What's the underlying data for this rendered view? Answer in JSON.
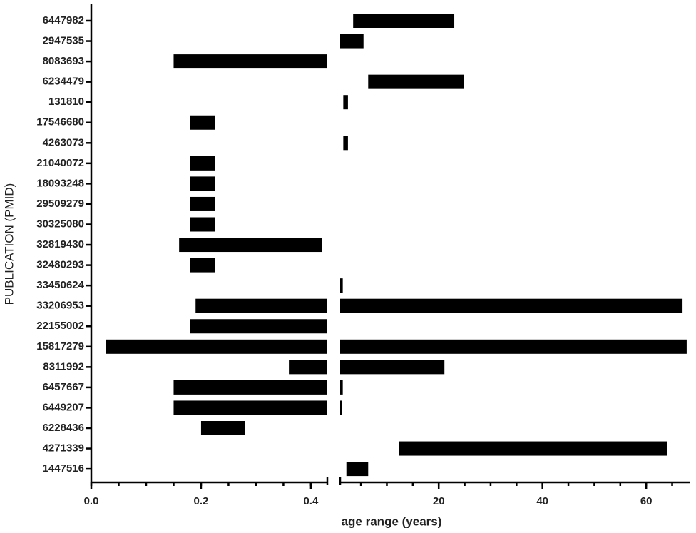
{
  "chart_data": {
    "type": "floating-bar",
    "x_label": "age range (years)",
    "y_label": "PUBLICATION (PMID)",
    "color": "#000000",
    "categories": [
      "6447982",
      "2947535",
      "8083693",
      "6234479",
      "131810",
      "17546680",
      "4263073",
      "21040072",
      "18093248",
      "29509279",
      "30325080",
      "32819430",
      "32480293",
      "33450624",
      "33206953",
      "22155002",
      "15817279",
      "8311992",
      "6457667",
      "6449207",
      "6228436",
      "4271339",
      "1447516"
    ],
    "start": [
      3.5,
      1,
      0.15,
      6.4,
      1.6,
      0.18,
      1.6,
      0.18,
      0.18,
      0.18,
      0.18,
      0.16,
      0.18,
      1,
      0.19,
      0.18,
      0.026,
      0.36,
      0.15,
      0.15,
      0.2,
      12.3,
      2.2
    ],
    "end": [
      23,
      5.5,
      0.43,
      24.9,
      2.5,
      0.225,
      2.5,
      0.225,
      0.225,
      0.225,
      0.225,
      0.42,
      0.225,
      1.5,
      67,
      0.43,
      67.8,
      21.1,
      1.5,
      1.3,
      0.28,
      64,
      6.4
    ],
    "xlim": [
      0,
      0.43
    ],
    "xticks": [
      {
        "value": 0,
        "label": "0.0"
      },
      0.2,
      0.4
    ],
    "x2lim": [
      1,
      68.5
    ],
    "x2ticks": [
      20,
      40,
      60
    ]
  }
}
